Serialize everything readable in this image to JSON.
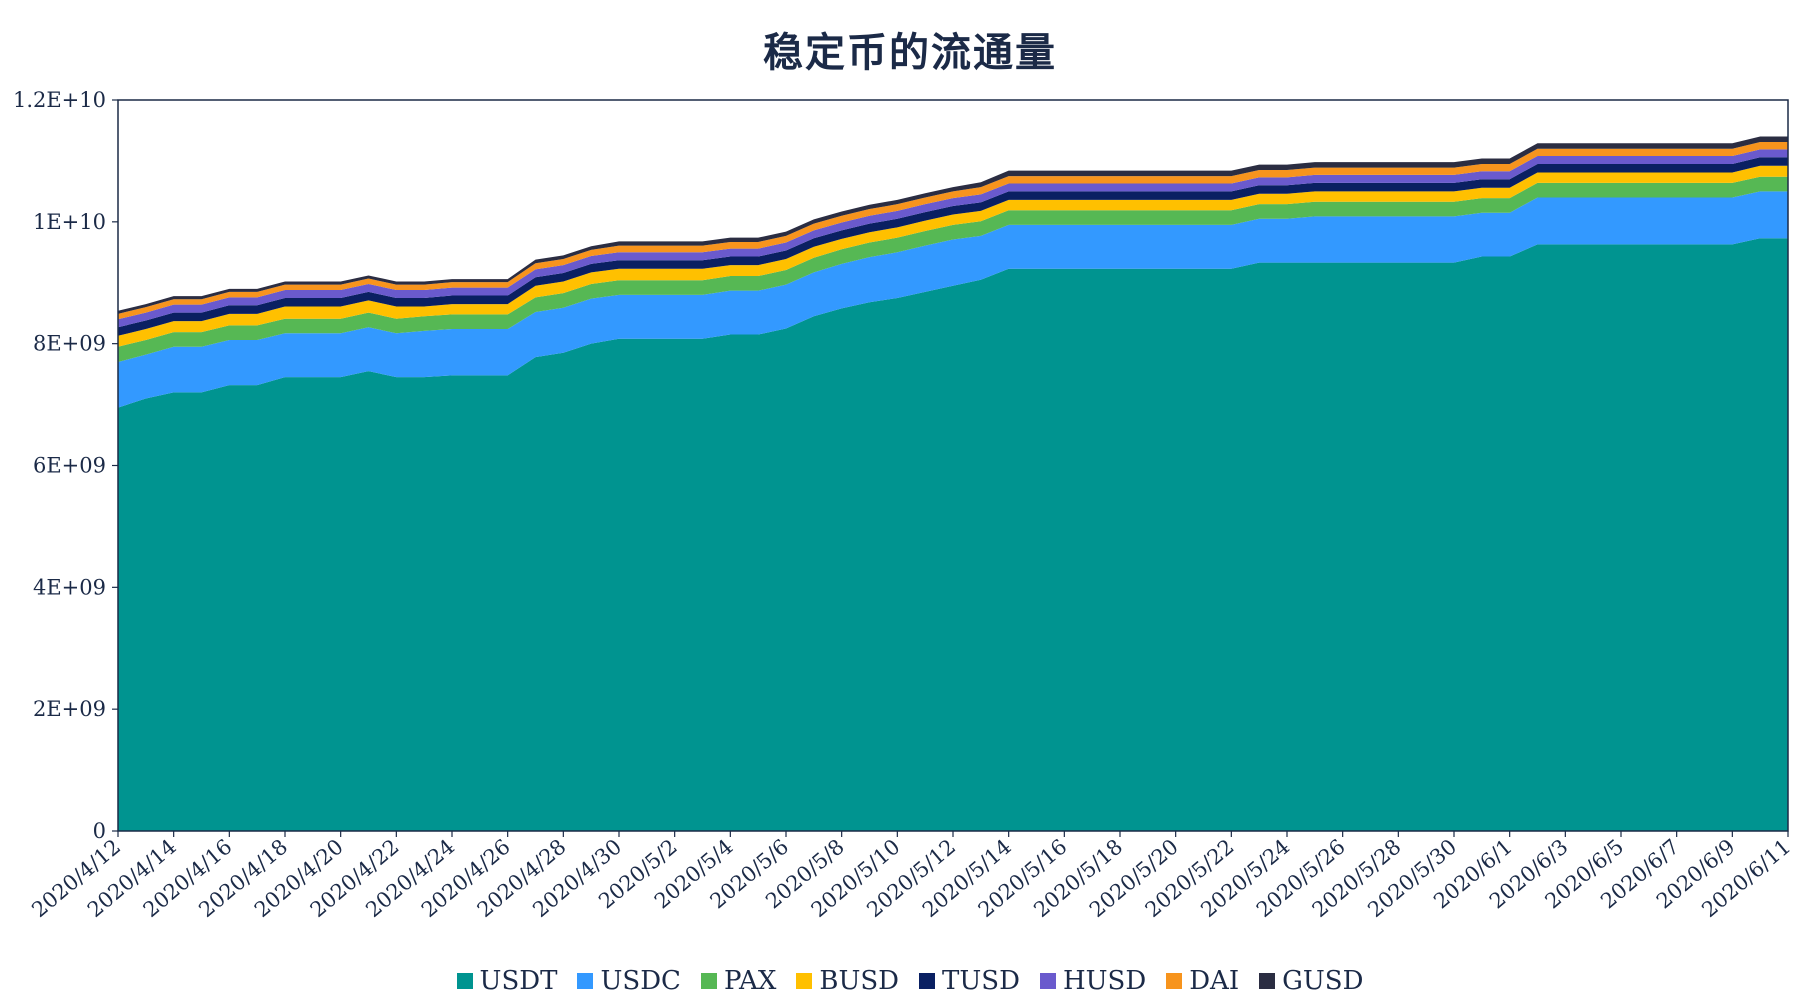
{
  "chart_data": {
    "type": "area",
    "stacked": true,
    "title": "稳定币的流通量",
    "xlabel": "",
    "ylabel": "",
    "ylim": [
      0,
      12000000000
    ],
    "y_ticks": [
      "0",
      "2E+09",
      "4E+09",
      "6E+09",
      "8E+09",
      "1E+10",
      "1.2E+10"
    ],
    "x": [
      "2020/4/12",
      "2020/4/13",
      "2020/4/14",
      "2020/4/15",
      "2020/4/16",
      "2020/4/17",
      "2020/4/18",
      "2020/4/19",
      "2020/4/20",
      "2020/4/21",
      "2020/4/22",
      "2020/4/23",
      "2020/4/24",
      "2020/4/25",
      "2020/4/26",
      "2020/4/27",
      "2020/4/28",
      "2020/4/29",
      "2020/4/30",
      "2020/5/1",
      "2020/5/2",
      "2020/5/3",
      "2020/5/4",
      "2020/5/5",
      "2020/5/6",
      "2020/5/7",
      "2020/5/8",
      "2020/5/9",
      "2020/5/10",
      "2020/5/11",
      "2020/5/12",
      "2020/5/13",
      "2020/5/14",
      "2020/5/15",
      "2020/5/16",
      "2020/5/17",
      "2020/5/18",
      "2020/5/19",
      "2020/5/20",
      "2020/5/21",
      "2020/5/22",
      "2020/5/23",
      "2020/5/24",
      "2020/5/25",
      "2020/5/26",
      "2020/5/27",
      "2020/5/28",
      "2020/5/29",
      "2020/5/30",
      "2020/5/31",
      "2020/6/1",
      "2020/6/2",
      "2020/6/3",
      "2020/6/4",
      "2020/6/5",
      "2020/6/6",
      "2020/6/7",
      "2020/6/8",
      "2020/6/9",
      "2020/6/10",
      "2020/6/11"
    ],
    "x_tick_labels": [
      "2020/4/12",
      "2020/4/14",
      "2020/4/16",
      "2020/4/18",
      "2020/4/20",
      "2020/4/22",
      "2020/4/24",
      "2020/4/26",
      "2020/4/28",
      "2020/4/30",
      "2020/5/2",
      "2020/5/4",
      "2020/5/6",
      "2020/5/8",
      "2020/5/10",
      "2020/5/12",
      "2020/5/14",
      "2020/5/16",
      "2020/5/18",
      "2020/5/20",
      "2020/5/22",
      "2020/5/24",
      "2020/5/26",
      "2020/5/28",
      "2020/5/30",
      "2020/6/1",
      "2020/6/3",
      "2020/6/5",
      "2020/6/7",
      "2020/6/9",
      "2020/6/11"
    ],
    "grid": false,
    "legend_position": "bottom",
    "series": [
      {
        "name": "USDT",
        "color": "#009490",
        "values": [
          6950000000,
          7100000000,
          7200000000,
          7200000000,
          7320000000,
          7320000000,
          7450000000,
          7450000000,
          7450000000,
          7550000000,
          7450000000,
          7450000000,
          7480000000,
          7480000000,
          7480000000,
          7780000000,
          7850000000,
          8000000000,
          8080000000,
          8080000000,
          8080000000,
          8080000000,
          8150000000,
          8150000000,
          8250000000,
          8450000000,
          8580000000,
          8680000000,
          8750000000,
          8850000000,
          8950000000,
          9050000000,
          9230000000,
          9230000000,
          9230000000,
          9230000000,
          9230000000,
          9230000000,
          9230000000,
          9230000000,
          9230000000,
          9330000000,
          9330000000,
          9330000000,
          9330000000,
          9330000000,
          9330000000,
          9330000000,
          9330000000,
          9430000000,
          9430000000,
          9630000000,
          9630000000,
          9630000000,
          9630000000,
          9630000000,
          9630000000,
          9630000000,
          9630000000,
          9730000000,
          9730000000
        ]
      },
      {
        "name": "USDC",
        "color": "#3399ff",
        "values": [
          750000000,
          720000000,
          750000000,
          750000000,
          740000000,
          740000000,
          720000000,
          720000000,
          720000000,
          720000000,
          720000000,
          760000000,
          760000000,
          760000000,
          760000000,
          740000000,
          740000000,
          740000000,
          720000000,
          720000000,
          720000000,
          720000000,
          720000000,
          720000000,
          720000000,
          720000000,
          730000000,
          740000000,
          750000000,
          760000000,
          760000000,
          720000000,
          720000000,
          720000000,
          720000000,
          720000000,
          720000000,
          720000000,
          720000000,
          720000000,
          720000000,
          720000000,
          720000000,
          760000000,
          760000000,
          760000000,
          760000000,
          760000000,
          760000000,
          720000000,
          720000000,
          770000000,
          770000000,
          770000000,
          770000000,
          770000000,
          770000000,
          770000000,
          770000000,
          770000000,
          770000000
        ]
      },
      {
        "name": "PAX",
        "color": "#56b854",
        "values": [
          250000000,
          240000000,
          240000000,
          240000000,
          240000000,
          240000000,
          240000000,
          240000000,
          240000000,
          240000000,
          240000000,
          240000000,
          240000000,
          240000000,
          240000000,
          240000000,
          240000000,
          240000000,
          240000000,
          240000000,
          240000000,
          240000000,
          240000000,
          240000000,
          240000000,
          240000000,
          240000000,
          240000000,
          240000000,
          240000000,
          240000000,
          240000000,
          240000000,
          240000000,
          240000000,
          240000000,
          240000000,
          240000000,
          240000000,
          240000000,
          240000000,
          240000000,
          240000000,
          240000000,
          240000000,
          240000000,
          240000000,
          240000000,
          240000000,
          240000000,
          240000000,
          240000000,
          240000000,
          240000000,
          240000000,
          240000000,
          240000000,
          240000000,
          240000000,
          240000000,
          240000000
        ]
      },
      {
        "name": "BUSD",
        "color": "#ffc000",
        "values": [
          180000000,
          180000000,
          180000000,
          180000000,
          190000000,
          190000000,
          200000000,
          200000000,
          200000000,
          200000000,
          200000000,
          160000000,
          170000000,
          170000000,
          170000000,
          190000000,
          190000000,
          190000000,
          190000000,
          190000000,
          190000000,
          190000000,
          180000000,
          180000000,
          180000000,
          180000000,
          170000000,
          170000000,
          170000000,
          170000000,
          170000000,
          170000000,
          170000000,
          170000000,
          170000000,
          170000000,
          170000000,
          170000000,
          170000000,
          170000000,
          170000000,
          170000000,
          170000000,
          170000000,
          170000000,
          170000000,
          170000000,
          170000000,
          170000000,
          170000000,
          170000000,
          170000000,
          170000000,
          170000000,
          170000000,
          170000000,
          170000000,
          170000000,
          170000000,
          180000000,
          180000000
        ]
      },
      {
        "name": "TUSD",
        "color": "#0a2062",
        "values": [
          140000000,
          140000000,
          140000000,
          140000000,
          140000000,
          140000000,
          140000000,
          140000000,
          140000000,
          140000000,
          140000000,
          140000000,
          140000000,
          140000000,
          140000000,
          140000000,
          140000000,
          140000000,
          140000000,
          140000000,
          140000000,
          140000000,
          140000000,
          140000000,
          140000000,
          140000000,
          140000000,
          140000000,
          140000000,
          140000000,
          140000000,
          140000000,
          140000000,
          140000000,
          140000000,
          140000000,
          140000000,
          140000000,
          140000000,
          140000000,
          140000000,
          140000000,
          140000000,
          140000000,
          140000000,
          140000000,
          140000000,
          140000000,
          140000000,
          140000000,
          140000000,
          140000000,
          140000000,
          140000000,
          140000000,
          140000000,
          140000000,
          140000000,
          140000000,
          140000000,
          140000000
        ]
      },
      {
        "name": "HUSD",
        "color": "#6a5acd",
        "values": [
          130000000,
          130000000,
          130000000,
          130000000,
          130000000,
          130000000,
          130000000,
          130000000,
          130000000,
          130000000,
          130000000,
          130000000,
          130000000,
          130000000,
          130000000,
          130000000,
          130000000,
          130000000,
          130000000,
          130000000,
          130000000,
          130000000,
          130000000,
          130000000,
          130000000,
          130000000,
          130000000,
          130000000,
          130000000,
          130000000,
          130000000,
          130000000,
          130000000,
          130000000,
          130000000,
          130000000,
          130000000,
          130000000,
          130000000,
          130000000,
          130000000,
          130000000,
          130000000,
          130000000,
          130000000,
          130000000,
          130000000,
          130000000,
          130000000,
          130000000,
          130000000,
          130000000,
          130000000,
          130000000,
          130000000,
          130000000,
          130000000,
          130000000,
          130000000,
          130000000,
          130000000
        ]
      },
      {
        "name": "DAI",
        "color": "#f7941d",
        "values": [
          90000000,
          90000000,
          90000000,
          90000000,
          90000000,
          90000000,
          90000000,
          90000000,
          90000000,
          90000000,
          90000000,
          90000000,
          90000000,
          90000000,
          90000000,
          100000000,
          100000000,
          100000000,
          110000000,
          110000000,
          110000000,
          110000000,
          110000000,
          110000000,
          110000000,
          110000000,
          110000000,
          110000000,
          110000000,
          110000000,
          110000000,
          120000000,
          120000000,
          120000000,
          120000000,
          120000000,
          120000000,
          120000000,
          120000000,
          120000000,
          120000000,
          120000000,
          120000000,
          120000000,
          120000000,
          120000000,
          120000000,
          120000000,
          120000000,
          120000000,
          120000000,
          120000000,
          120000000,
          120000000,
          120000000,
          120000000,
          120000000,
          120000000,
          120000000,
          120000000,
          120000000
        ]
      },
      {
        "name": "GUSD",
        "color": "#2b2d42",
        "values": [
          50000000,
          50000000,
          50000000,
          50000000,
          50000000,
          50000000,
          50000000,
          50000000,
          50000000,
          50000000,
          50000000,
          50000000,
          50000000,
          50000000,
          50000000,
          60000000,
          60000000,
          60000000,
          70000000,
          70000000,
          70000000,
          70000000,
          70000000,
          70000000,
          70000000,
          70000000,
          70000000,
          70000000,
          70000000,
          70000000,
          70000000,
          80000000,
          90000000,
          90000000,
          90000000,
          90000000,
          90000000,
          90000000,
          90000000,
          90000000,
          90000000,
          90000000,
          90000000,
          90000000,
          90000000,
          90000000,
          90000000,
          90000000,
          90000000,
          90000000,
          90000000,
          90000000,
          90000000,
          90000000,
          90000000,
          90000000,
          90000000,
          90000000,
          90000000,
          90000000,
          90000000
        ]
      }
    ]
  }
}
